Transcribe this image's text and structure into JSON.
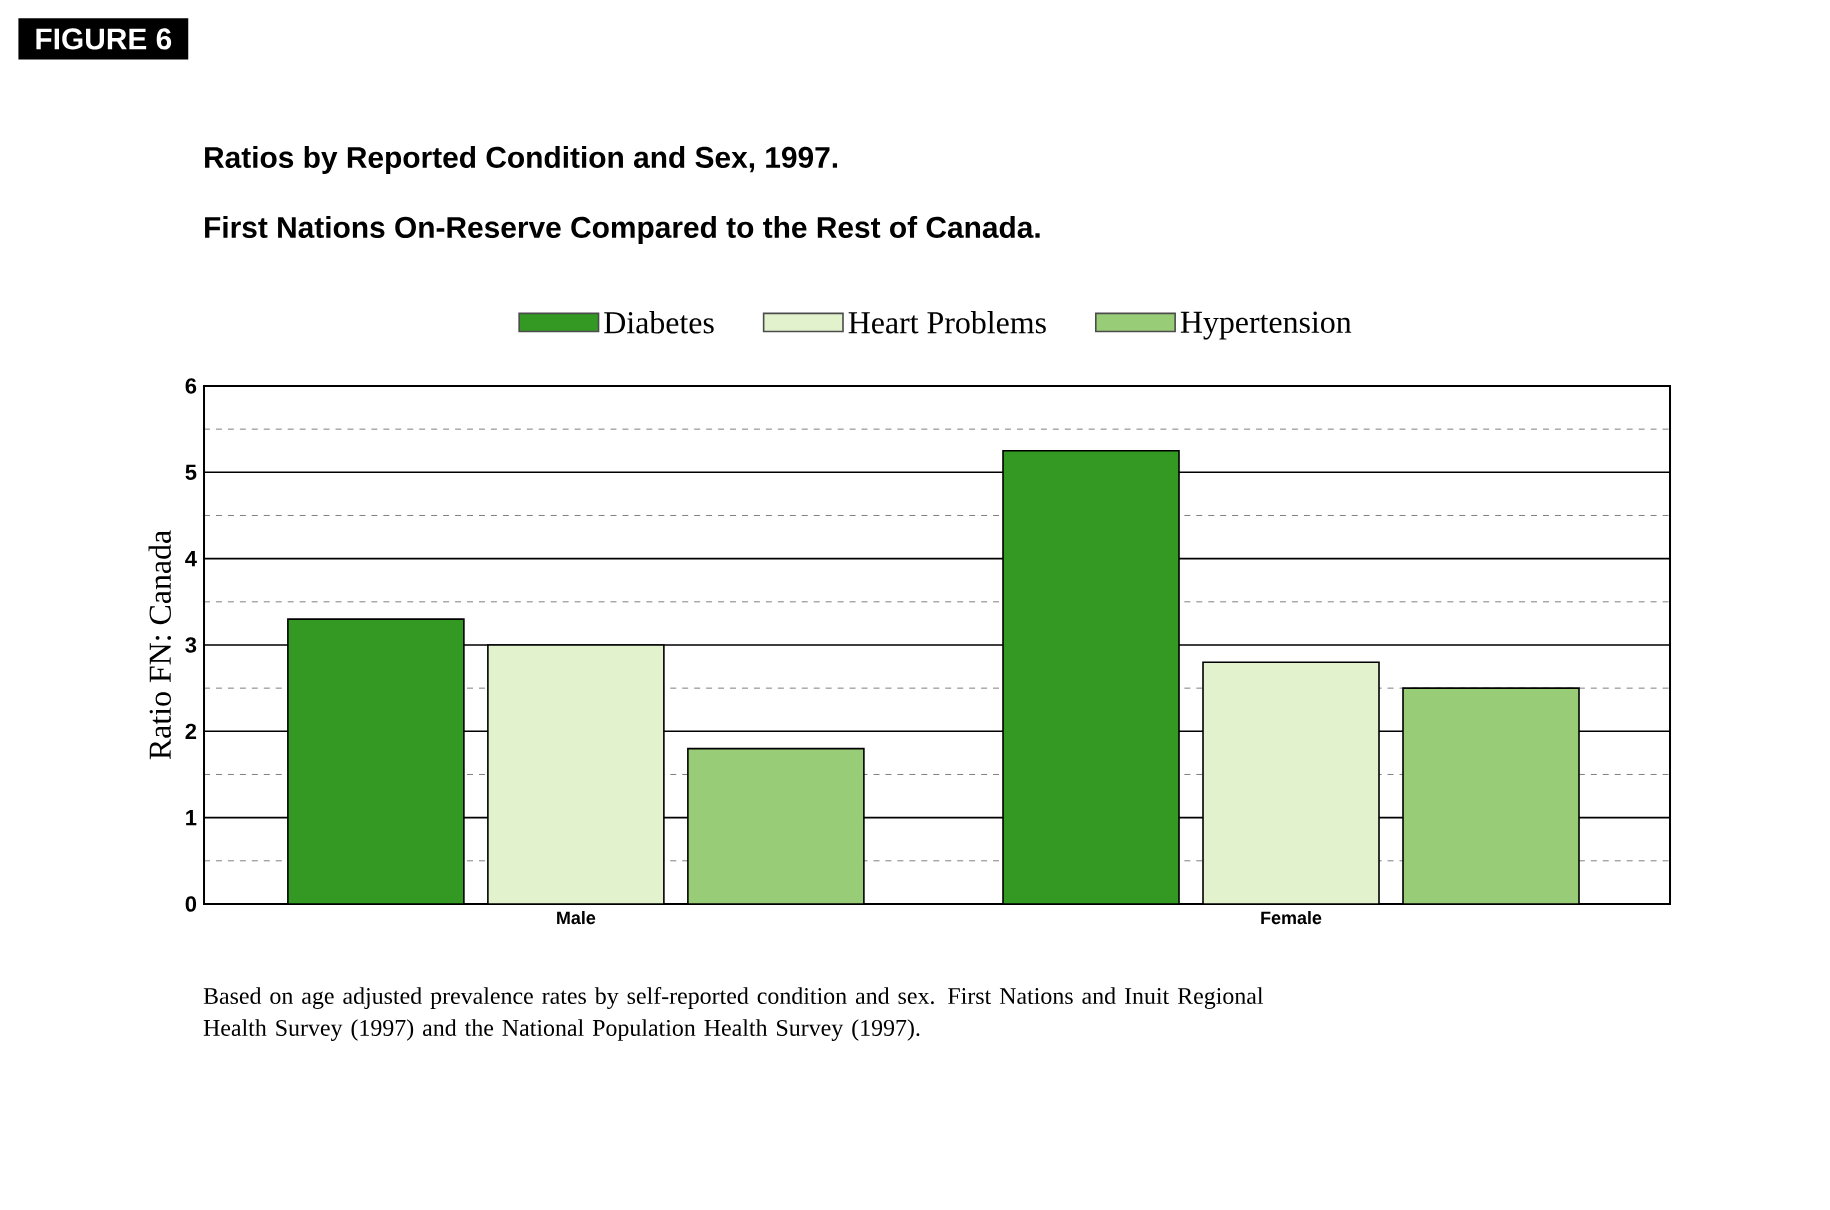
{
  "chart_data": {
    "type": "bar",
    "title": "Ratios by Reported Condition and Sex, 1997.",
    "subtitle": "First Nations On-Reserve Compared to the Rest of Canada.",
    "ylabel": "Ratio  FN: Canada",
    "categories": [
      "Male",
      "Female"
    ],
    "series": [
      {
        "name": "Diabetes",
        "color": "#339922",
        "values": [
          3.3,
          5.25
        ]
      },
      {
        "name": "Heart Problems",
        "color": "#e2f2cc",
        "values": [
          3.0,
          2.8
        ]
      },
      {
        "name": "Hypertension",
        "color": "#99cc77",
        "values": [
          1.8,
          2.5
        ]
      }
    ],
    "ylim": [
      0,
      6
    ],
    "yticks": [
      0,
      1,
      2,
      3,
      4,
      5,
      6
    ],
    "grid": "y",
    "legend": "top",
    "annotations": [
      "FIGURE 6",
      "Based on age adjusted prevalence rates by self-reported condition and sex. First Nations and Inuit Regional Health Survey (1997) and the National Population Health Survey (1997)."
    ]
  }
}
